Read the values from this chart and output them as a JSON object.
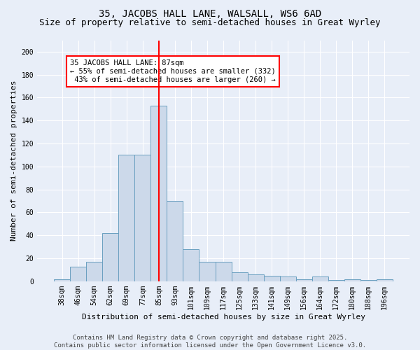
{
  "title1": "35, JACOBS HALL LANE, WALSALL, WS6 6AD",
  "title2": "Size of property relative to semi-detached houses in Great Wyrley",
  "xlabel": "Distribution of semi-detached houses by size in Great Wyrley",
  "ylabel": "Number of semi-detached properties",
  "categories": [
    "38sqm",
    "46sqm",
    "54sqm",
    "62sqm",
    "69sqm",
    "77sqm",
    "85sqm",
    "93sqm",
    "101sqm",
    "109sqm",
    "117sqm",
    "125sqm",
    "133sqm",
    "141sqm",
    "149sqm",
    "156sqm",
    "164sqm",
    "172sqm",
    "180sqm",
    "188sqm",
    "196sqm"
  ],
  "values": [
    2,
    13,
    17,
    42,
    110,
    110,
    153,
    70,
    28,
    17,
    17,
    8,
    6,
    5,
    4,
    2,
    4,
    1,
    2,
    1,
    2
  ],
  "bar_color": "#ccd9ea",
  "bar_edge_color": "#6a9fc0",
  "vline_x_index": 6,
  "vline_color": "red",
  "annotation_text": "35 JACOBS HALL LANE: 87sqm\n← 55% of semi-detached houses are smaller (332)\n 43% of semi-detached houses are larger (260) →",
  "annotation_box_color": "white",
  "annotation_box_edge_color": "red",
  "ylim": [
    0,
    210
  ],
  "yticks": [
    0,
    20,
    40,
    60,
    80,
    100,
    120,
    140,
    160,
    180,
    200
  ],
  "footer": "Contains HM Land Registry data © Crown copyright and database right 2025.\nContains public sector information licensed under the Open Government Licence v3.0.",
  "bg_color": "#e8eef8",
  "grid_color": "white",
  "title_fontsize": 10,
  "subtitle_fontsize": 9,
  "axis_label_fontsize": 8,
  "tick_fontsize": 7,
  "footer_fontsize": 6.5,
  "annotation_fontsize": 7.5
}
